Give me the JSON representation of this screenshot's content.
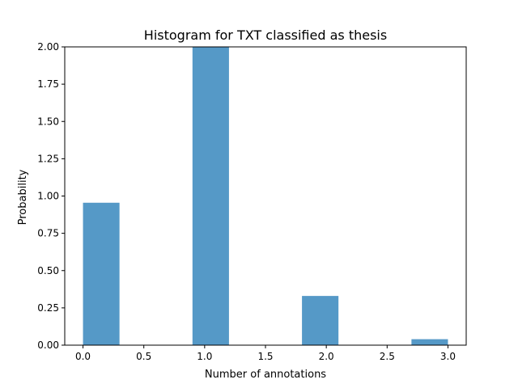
{
  "chart_data": {
    "type": "bar",
    "title": "Histogram for TXT classified as thesis",
    "xlabel": "Number of annotations",
    "ylabel": "Probability",
    "xlim": [
      -0.15,
      3.15
    ],
    "ylim": [
      0,
      2.0
    ],
    "bar_color": "#5599c7",
    "bins": [
      {
        "x0": 0.0,
        "x1": 0.3,
        "value": 0.955
      },
      {
        "x0": 0.3,
        "x1": 0.6,
        "value": 0
      },
      {
        "x0": 0.6,
        "x1": 0.9,
        "value": 0
      },
      {
        "x0": 0.9,
        "x1": 1.2,
        "value": 2.0
      },
      {
        "x0": 1.2,
        "x1": 1.5,
        "value": 0
      },
      {
        "x0": 1.5,
        "x1": 1.8,
        "value": 0
      },
      {
        "x0": 1.8,
        "x1": 2.1,
        "value": 0.33
      },
      {
        "x0": 2.1,
        "x1": 2.4,
        "value": 0
      },
      {
        "x0": 2.4,
        "x1": 2.7,
        "value": 0
      },
      {
        "x0": 2.7,
        "x1": 3.0,
        "value": 0.04
      }
    ],
    "xticks": [
      {
        "value": 0.0,
        "label": "0.0"
      },
      {
        "value": 0.5,
        "label": "0.5"
      },
      {
        "value": 1.0,
        "label": "1.0"
      },
      {
        "value": 1.5,
        "label": "1.5"
      },
      {
        "value": 2.0,
        "label": "2.0"
      },
      {
        "value": 2.5,
        "label": "2.5"
      },
      {
        "value": 3.0,
        "label": "3.0"
      }
    ],
    "yticks": [
      {
        "value": 0.0,
        "label": "0.00"
      },
      {
        "value": 0.25,
        "label": "0.25"
      },
      {
        "value": 0.5,
        "label": "0.50"
      },
      {
        "value": 0.75,
        "label": "0.75"
      },
      {
        "value": 1.0,
        "label": "1.00"
      },
      {
        "value": 1.25,
        "label": "1.25"
      },
      {
        "value": 1.5,
        "label": "1.50"
      },
      {
        "value": 1.75,
        "label": "1.75"
      },
      {
        "value": 2.0,
        "label": "2.00"
      }
    ],
    "grid": false
  }
}
